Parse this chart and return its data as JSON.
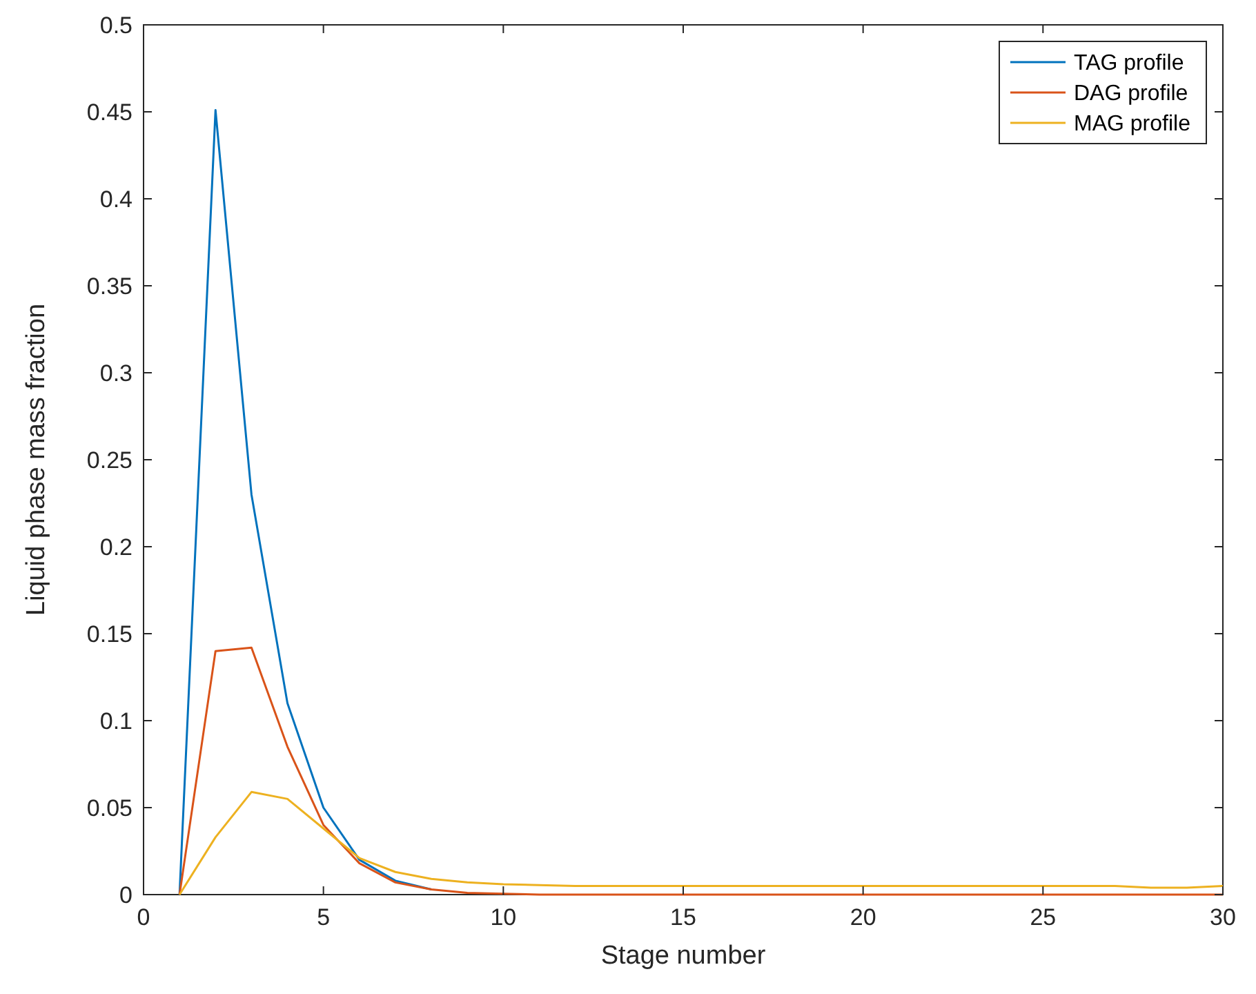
{
  "chart_data": {
    "type": "line",
    "xlabel": "Stage number",
    "ylabel": "Liquid phase mass fraction",
    "x": [
      1,
      2,
      3,
      4,
      5,
      6,
      7,
      8,
      9,
      10,
      11,
      12,
      13,
      14,
      15,
      16,
      17,
      18,
      19,
      20,
      21,
      22,
      23,
      24,
      25,
      26,
      27,
      28,
      29,
      30
    ],
    "series": [
      {
        "name": "TAG profile",
        "color": "#0072bd",
        "values": [
          0,
          0.451,
          0.23,
          0.11,
          0.05,
          0.02,
          0.008,
          0.003,
          null,
          null,
          null,
          null,
          null,
          null,
          null,
          null,
          null,
          null,
          null,
          null,
          null,
          null,
          null,
          null,
          null,
          null,
          null,
          null,
          null,
          null
        ]
      },
      {
        "name": "DAG profile",
        "color": "#d95319",
        "values": [
          0,
          0.14,
          0.142,
          0.085,
          0.04,
          0.018,
          0.007,
          0.003,
          0.001,
          0.0005,
          0,
          0,
          0,
          0,
          0,
          0,
          0,
          0,
          0,
          0,
          0,
          0,
          0,
          0,
          0,
          0,
          0,
          0,
          0,
          0
        ]
      },
      {
        "name": "MAG profile",
        "color": "#edb120",
        "values": [
          0,
          0.033,
          0.059,
          0.055,
          0.038,
          0.021,
          0.013,
          0.009,
          0.007,
          0.006,
          0.0055,
          0.005,
          0.005,
          0.005,
          0.005,
          0.005,
          0.005,
          0.005,
          0.005,
          0.005,
          0.005,
          0.005,
          0.005,
          0.005,
          0.005,
          0.005,
          0.005,
          0.004,
          0.004,
          0.005
        ]
      }
    ],
    "xlim": [
      0,
      30
    ],
    "xticks": [
      0,
      5,
      10,
      15,
      20,
      25,
      30
    ],
    "ylim": [
      0,
      0.5
    ],
    "yticks": [
      0,
      0.05,
      0.1,
      0.15,
      0.2,
      0.25,
      0.3,
      0.35,
      0.4,
      0.45,
      0.5
    ],
    "grid": false,
    "legend": "top right",
    "marker": "none",
    "line_style": "solid"
  }
}
